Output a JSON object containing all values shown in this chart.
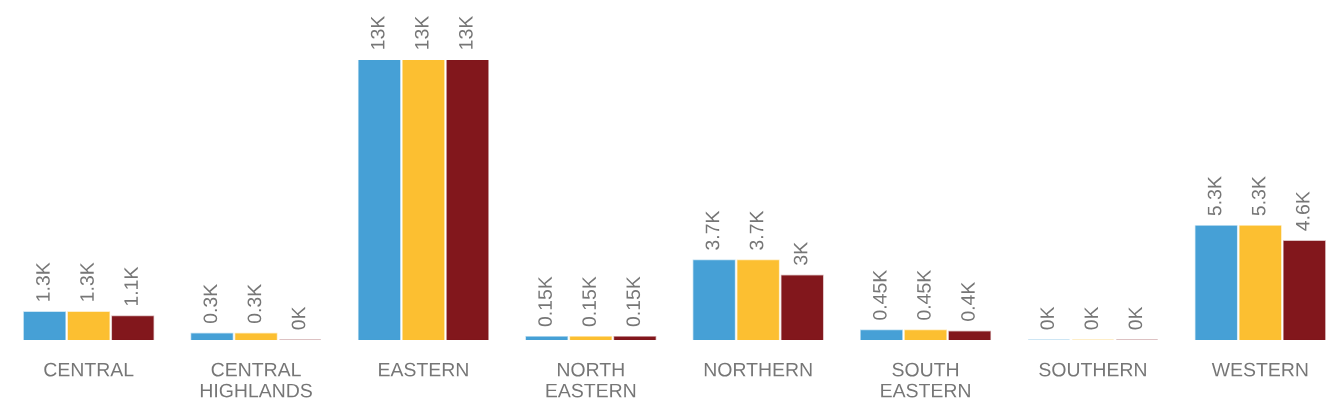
{
  "chart_data": {
    "type": "bar",
    "tick_labels": "x",
    "categories": [
      "CENTRAL",
      "CENTRAL\nHIGHLANDS",
      "EASTERN",
      "NORTH\nEASTERN",
      "NORTHERN",
      "SOUTH\nEASTERN",
      "SOUTHERN",
      "WESTERN"
    ],
    "series": [
      {
        "color": "#46a0d6",
        "values": [
          1300,
          300,
          13000,
          150,
          3700,
          450,
          0,
          5300
        ],
        "value_labels": [
          "1.3K",
          "0.3K",
          "13K",
          "0.15K",
          "3.7K",
          "0.45K",
          "0K",
          "5.3K"
        ]
      },
      {
        "color": "#fcbf31",
        "values": [
          1300,
          300,
          13000,
          150,
          3700,
          450,
          0,
          5300
        ],
        "value_labels": [
          "1.3K",
          "0.3K",
          "13K",
          "0.15K",
          "3.7K",
          "0.45K",
          "0K",
          "5.3K"
        ]
      },
      {
        "color": "#82171c",
        "values": [
          1100,
          0,
          13000,
          150,
          3000,
          400,
          0,
          4600
        ],
        "value_labels": [
          "1.1K",
          "0K",
          "13K",
          "0.15K",
          "3K",
          "0.4K",
          "0K",
          "4.6K"
        ]
      }
    ]
  }
}
